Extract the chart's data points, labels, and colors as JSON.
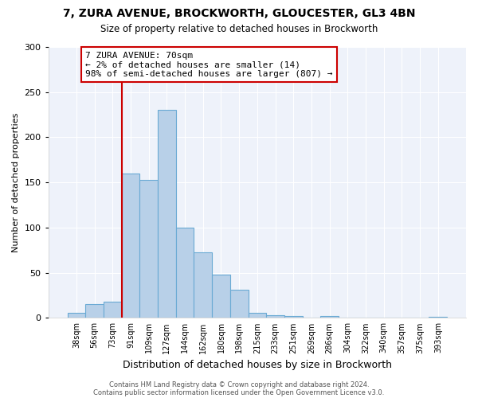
{
  "title": "7, ZURA AVENUE, BROCKWORTH, GLOUCESTER, GL3 4BN",
  "subtitle": "Size of property relative to detached houses in Brockworth",
  "xlabel": "Distribution of detached houses by size in Brockworth",
  "ylabel": "Number of detached properties",
  "bar_labels": [
    "38sqm",
    "56sqm",
    "73sqm",
    "91sqm",
    "109sqm",
    "127sqm",
    "144sqm",
    "162sqm",
    "180sqm",
    "198sqm",
    "215sqm",
    "233sqm",
    "251sqm",
    "269sqm",
    "286sqm",
    "304sqm",
    "322sqm",
    "340sqm",
    "357sqm",
    "375sqm",
    "393sqm"
  ],
  "bar_values": [
    6,
    15,
    18,
    160,
    153,
    230,
    100,
    73,
    48,
    31,
    6,
    3,
    2,
    0,
    2,
    0,
    0,
    0,
    0,
    0,
    1
  ],
  "bar_color": "#b8d0e8",
  "bar_edge_color": "#6aaad4",
  "vline_x_idx": 2,
  "vline_color": "#cc0000",
  "annotation_text": "7 ZURA AVENUE: 70sqm\n← 2% of detached houses are smaller (14)\n98% of semi-detached houses are larger (807) →",
  "annotation_box_color": "#ffffff",
  "annotation_box_edge": "#cc0000",
  "ylim": [
    0,
    300
  ],
  "yticks": [
    0,
    50,
    100,
    150,
    200,
    250,
    300
  ],
  "footer1": "Contains HM Land Registry data © Crown copyright and database right 2024.",
  "footer2": "Contains public sector information licensed under the Open Government Licence v3.0.",
  "bg_color": "#eef2fa",
  "fig_bg": "#ffffff",
  "grid_color": "#ffffff",
  "title_fontsize": 10,
  "subtitle_fontsize": 8.5,
  "xlabel_fontsize": 9,
  "ylabel_fontsize": 8,
  "tick_fontsize": 7,
  "footer_fontsize": 6,
  "ann_fontsize": 8
}
